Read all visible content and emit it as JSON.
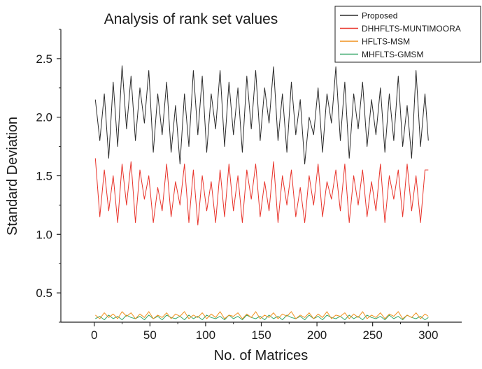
{
  "chart_data": {
    "type": "line",
    "title": "Analysis of rank set values",
    "xlabel": "No. of Matrices",
    "ylabel": "Standard Deviation",
    "xlim": [
      -30,
      330
    ],
    "ylim": [
      0.25,
      2.75
    ],
    "x_ticks": [
      0,
      50,
      100,
      150,
      200,
      250,
      300
    ],
    "x_tick_labels": [
      "0",
      "50",
      "100",
      "150",
      "200",
      "250",
      "300"
    ],
    "y_ticks": [
      0.5,
      1.0,
      1.5,
      2.0,
      2.5
    ],
    "y_tick_labels": [
      "0.5",
      "1.0",
      "1.5",
      "2.0",
      "2.5"
    ],
    "grid": false,
    "legend_position": "top-right",
    "series": [
      {
        "name": "Proposed",
        "color": "#2b2b2b",
        "x": [
          1,
          5,
          9,
          13,
          17,
          21,
          25,
          29,
          33,
          37,
          41,
          45,
          49,
          53,
          57,
          61,
          65,
          69,
          73,
          77,
          81,
          85,
          89,
          93,
          97,
          101,
          105,
          109,
          113,
          117,
          121,
          125,
          129,
          133,
          137,
          141,
          145,
          149,
          153,
          157,
          161,
          165,
          169,
          173,
          177,
          181,
          185,
          189,
          193,
          197,
          201,
          205,
          209,
          213,
          217,
          221,
          225,
          229,
          233,
          237,
          241,
          245,
          249,
          253,
          257,
          261,
          265,
          269,
          273,
          277,
          281,
          285,
          289,
          293,
          297,
          300
        ],
        "values": [
          2.15,
          1.8,
          2.2,
          1.65,
          2.3,
          1.75,
          2.44,
          1.9,
          2.35,
          1.8,
          2.25,
          1.95,
          2.4,
          1.7,
          2.2,
          1.85,
          2.3,
          1.7,
          2.1,
          1.6,
          2.2,
          1.75,
          2.4,
          1.85,
          2.35,
          1.7,
          2.2,
          1.9,
          2.4,
          1.75,
          2.3,
          1.85,
          2.25,
          1.7,
          2.35,
          1.9,
          2.4,
          1.8,
          2.25,
          1.95,
          2.43,
          1.8,
          2.2,
          1.7,
          2.3,
          1.85,
          2.15,
          1.6,
          2.0,
          1.85,
          2.25,
          1.7,
          2.2,
          1.95,
          2.43,
          1.8,
          2.3,
          1.65,
          2.2,
          1.9,
          2.3,
          1.75,
          2.15,
          1.85,
          2.25,
          1.7,
          2.2,
          1.8,
          2.35,
          1.75,
          2.1,
          1.65,
          2.4,
          1.75,
          2.2,
          1.8
        ]
      },
      {
        "name": "DHHFLTS-MUNTIMOORA",
        "color": "#e8332a",
        "x": [
          1,
          5,
          9,
          13,
          17,
          21,
          25,
          29,
          33,
          37,
          41,
          45,
          49,
          53,
          57,
          61,
          65,
          69,
          73,
          77,
          81,
          85,
          89,
          93,
          97,
          101,
          105,
          109,
          113,
          117,
          121,
          125,
          129,
          133,
          137,
          141,
          145,
          149,
          153,
          157,
          161,
          165,
          169,
          173,
          177,
          181,
          185,
          189,
          193,
          197,
          201,
          205,
          209,
          213,
          217,
          221,
          225,
          229,
          233,
          237,
          241,
          245,
          249,
          253,
          257,
          261,
          265,
          269,
          273,
          277,
          281,
          285,
          289,
          293,
          297,
          300
        ],
        "values": [
          1.65,
          1.15,
          1.55,
          1.2,
          1.5,
          1.1,
          1.6,
          1.25,
          1.62,
          1.1,
          1.55,
          1.3,
          1.5,
          1.1,
          1.4,
          1.2,
          1.6,
          1.15,
          1.45,
          1.25,
          1.6,
          1.1,
          1.55,
          1.08,
          1.5,
          1.2,
          1.45,
          1.1,
          1.55,
          1.15,
          1.6,
          1.2,
          1.5,
          1.1,
          1.55,
          1.3,
          1.6,
          1.15,
          1.45,
          1.2,
          1.62,
          1.1,
          1.5,
          1.25,
          1.55,
          1.15,
          1.4,
          1.1,
          1.5,
          1.25,
          1.6,
          1.15,
          1.45,
          1.3,
          1.55,
          1.2,
          1.6,
          1.1,
          1.5,
          1.25,
          1.55,
          1.15,
          1.45,
          1.2,
          1.6,
          1.1,
          1.5,
          1.3,
          1.55,
          1.15,
          1.6,
          1.2,
          1.5,
          1.1,
          1.55,
          1.55
        ]
      },
      {
        "name": "HFLTS-MSM",
        "color": "#f0901e",
        "x": [
          1,
          5,
          9,
          13,
          17,
          21,
          25,
          29,
          33,
          37,
          41,
          45,
          49,
          53,
          57,
          61,
          65,
          69,
          73,
          77,
          81,
          85,
          89,
          93,
          97,
          101,
          105,
          109,
          113,
          117,
          121,
          125,
          129,
          133,
          137,
          141,
          145,
          149,
          153,
          157,
          161,
          165,
          169,
          173,
          177,
          181,
          185,
          189,
          193,
          197,
          201,
          205,
          209,
          213,
          217,
          221,
          225,
          229,
          233,
          237,
          241,
          245,
          249,
          253,
          257,
          261,
          265,
          269,
          273,
          277,
          281,
          285,
          289,
          293,
          297,
          300
        ],
        "values": [
          0.31,
          0.28,
          0.33,
          0.29,
          0.32,
          0.28,
          0.34,
          0.3,
          0.33,
          0.28,
          0.32,
          0.29,
          0.34,
          0.28,
          0.31,
          0.29,
          0.33,
          0.28,
          0.32,
          0.3,
          0.34,
          0.28,
          0.31,
          0.29,
          0.33,
          0.28,
          0.32,
          0.29,
          0.34,
          0.28,
          0.31,
          0.3,
          0.33,
          0.28,
          0.32,
          0.29,
          0.34,
          0.28,
          0.31,
          0.29,
          0.33,
          0.28,
          0.32,
          0.3,
          0.34,
          0.28,
          0.31,
          0.29,
          0.33,
          0.28,
          0.32,
          0.29,
          0.34,
          0.28,
          0.31,
          0.3,
          0.33,
          0.28,
          0.32,
          0.29,
          0.34,
          0.28,
          0.31,
          0.29,
          0.33,
          0.28,
          0.32,
          0.3,
          0.34,
          0.28,
          0.31,
          0.29,
          0.33,
          0.28,
          0.32,
          0.3
        ]
      },
      {
        "name": "MHFLTS-GMSM",
        "color": "#3aa86b",
        "x": [
          1,
          5,
          9,
          13,
          17,
          21,
          25,
          29,
          33,
          37,
          41,
          45,
          49,
          53,
          57,
          61,
          65,
          69,
          73,
          77,
          81,
          85,
          89,
          93,
          97,
          101,
          105,
          109,
          113,
          117,
          121,
          125,
          129,
          133,
          137,
          141,
          145,
          149,
          153,
          157,
          161,
          165,
          169,
          173,
          177,
          181,
          185,
          189,
          193,
          197,
          201,
          205,
          209,
          213,
          217,
          221,
          225,
          229,
          233,
          237,
          241,
          245,
          249,
          253,
          257,
          261,
          265,
          269,
          273,
          277,
          281,
          285,
          289,
          293,
          297,
          300
        ],
        "values": [
          0.28,
          0.3,
          0.27,
          0.31,
          0.28,
          0.3,
          0.27,
          0.31,
          0.29,
          0.28,
          0.3,
          0.27,
          0.31,
          0.28,
          0.3,
          0.27,
          0.31,
          0.29,
          0.28,
          0.3,
          0.27,
          0.31,
          0.28,
          0.3,
          0.27,
          0.31,
          0.29,
          0.28,
          0.3,
          0.27,
          0.31,
          0.28,
          0.3,
          0.27,
          0.31,
          0.29,
          0.28,
          0.3,
          0.27,
          0.31,
          0.28,
          0.3,
          0.27,
          0.31,
          0.29,
          0.28,
          0.3,
          0.27,
          0.31,
          0.28,
          0.3,
          0.27,
          0.31,
          0.29,
          0.28,
          0.3,
          0.27,
          0.31,
          0.28,
          0.3,
          0.27,
          0.31,
          0.29,
          0.28,
          0.3,
          0.27,
          0.31,
          0.28,
          0.3,
          0.27,
          0.31,
          0.29,
          0.28,
          0.3,
          0.27,
          0.29
        ]
      }
    ]
  }
}
